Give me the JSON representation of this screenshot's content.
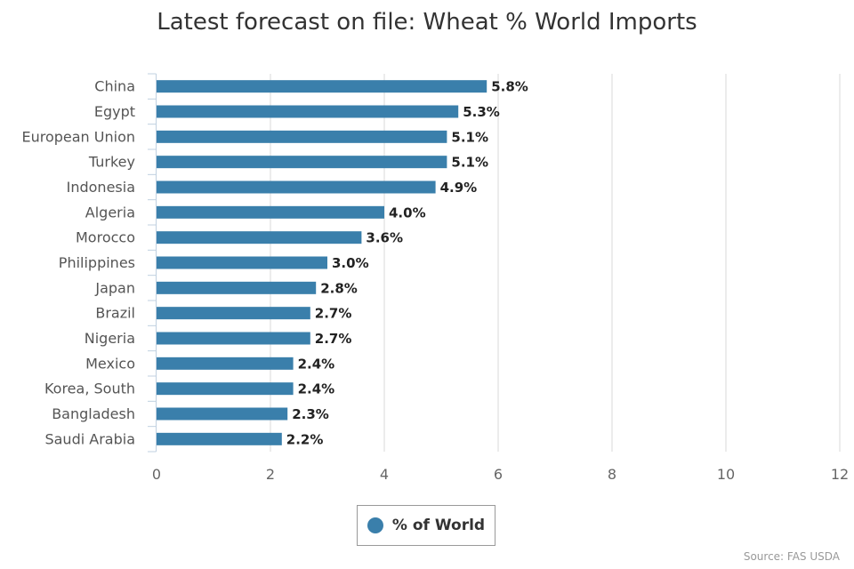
{
  "chart_data": {
    "type": "bar",
    "orientation": "horizontal",
    "title": "Latest forecast on file: Wheat % World Imports",
    "xlabel": "",
    "ylabel": "",
    "categories": [
      "China",
      "Egypt",
      "European Union",
      "Turkey",
      "Indonesia",
      "Algeria",
      "Morocco",
      "Philippines",
      "Japan",
      "Brazil",
      "Nigeria",
      "Mexico",
      "Korea, South",
      "Bangladesh",
      "Saudi Arabia"
    ],
    "series": [
      {
        "name": "% of World",
        "values": [
          5.8,
          5.3,
          5.1,
          5.1,
          4.9,
          4.0,
          3.6,
          3.0,
          2.8,
          2.7,
          2.7,
          2.4,
          2.4,
          2.3,
          2.2
        ],
        "data_labels": [
          "5.8%",
          "5.3%",
          "5.1%",
          "5.1%",
          "4.9%",
          "4.0%",
          "3.6%",
          "3.0%",
          "2.8%",
          "2.7%",
          "2.7%",
          "2.4%",
          "2.4%",
          "2.3%",
          "2.2%"
        ],
        "color": "#3a7fab"
      }
    ],
    "xlim": [
      0,
      12
    ],
    "xticks": [
      0,
      2,
      4,
      6,
      8,
      10,
      12
    ],
    "grid": true,
    "legend_position": "bottom-center"
  },
  "credit": "Source: FAS USDA"
}
